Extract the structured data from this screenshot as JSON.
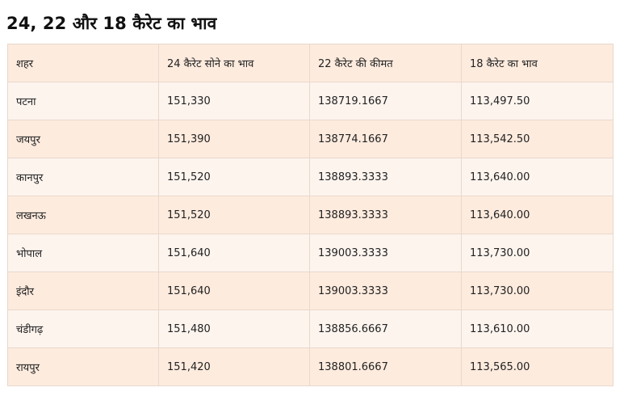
{
  "title": "24, 22 और 18 कैरेट का भाव",
  "table": {
    "headers": [
      "शहर",
      "24 कैरेट सोने का भाव",
      "22 कैरेट की कीमत",
      "18 कैरेट का भाव"
    ],
    "rows": [
      [
        "पटना",
        "151,330",
        "138719.1667",
        "113,497.50"
      ],
      [
        "जयपुर",
        "151,390",
        "138774.1667",
        "113,542.50"
      ],
      [
        "कानपुर",
        "151,520",
        "138893.3333",
        "113,640.00"
      ],
      [
        "लखनऊ",
        "151,520",
        "138893.3333",
        "113,640.00"
      ],
      [
        "भोपाल",
        "151,640",
        "139003.3333",
        "113,730.00"
      ],
      [
        "इंदौर",
        "151,640",
        "139003.3333",
        "113,730.00"
      ],
      [
        "चंडीगढ़",
        "151,480",
        "138856.6667",
        "113,610.00"
      ],
      [
        "रायपुर",
        "151,420",
        "138801.6667",
        "113,565.00"
      ]
    ]
  }
}
